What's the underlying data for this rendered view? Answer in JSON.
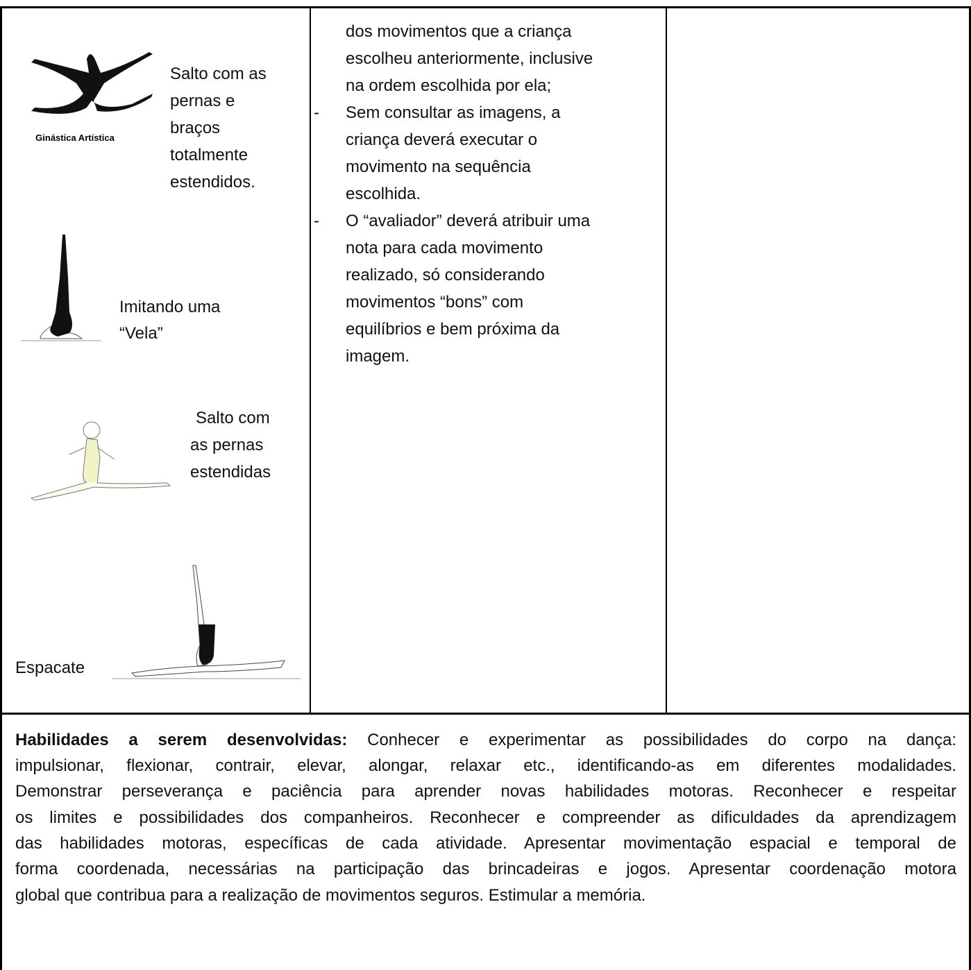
{
  "figures": [
    {
      "image_label": "Ginástica Artística",
      "caption_lines": [
        "Salto com as",
        "pernas e",
        "braços",
        "totalmente",
        "estendidos."
      ]
    },
    {
      "caption_lines": [
        "Imitando uma",
        "“Vela”"
      ]
    },
    {
      "caption_lines": [
        "Salto com",
        "as pernas",
        "estendidas"
      ]
    },
    {
      "caption_lines": [
        "Espacate"
      ]
    }
  ],
  "instructions": [
    {
      "lines": [
        "dos movimentos que a criança",
        "escolheu anteriormente, inclusive",
        "na ordem escolhida por ela;"
      ]
    },
    {
      "marker": "-",
      "lines": [
        "Sem consultar as imagens, a",
        "criança deverá executar o",
        "movimento na sequência",
        "escolhida."
      ]
    },
    {
      "marker": "-",
      "lines": [
        "O “avaliador” deverá atribuir uma",
        "nota para cada movimento",
        "realizado, só considerando",
        "movimentos “bons” com",
        "equilíbrios e bem próxima da",
        "imagem."
      ]
    }
  ],
  "skills": {
    "heading": "Habilidades a serem desenvolvidas:",
    "first_line": "Conhecer e experimentar as possibilidades do corpo na dança:",
    "lines": [
      "impulsionar, flexionar, contrair, elevar, alongar, relaxar etc., identificando-as em diferentes modalidades.",
      "Demonstrar perseverança e paciência para aprender novas habilidades motoras. Reconhecer e respeitar",
      "os limites e possibilidades dos companheiros. Reconhecer e compreender as dificuldades da aprendizagem",
      "das habilidades motoras, específicas de cada atividade. Apresentar movimentação espacial e temporal de",
      "forma coordenada, necessárias na participação das brincadeiras e jogos. Apresentar coordenação motora",
      "global que contribua para a realização de movimentos seguros. Estimular a memória."
    ]
  }
}
